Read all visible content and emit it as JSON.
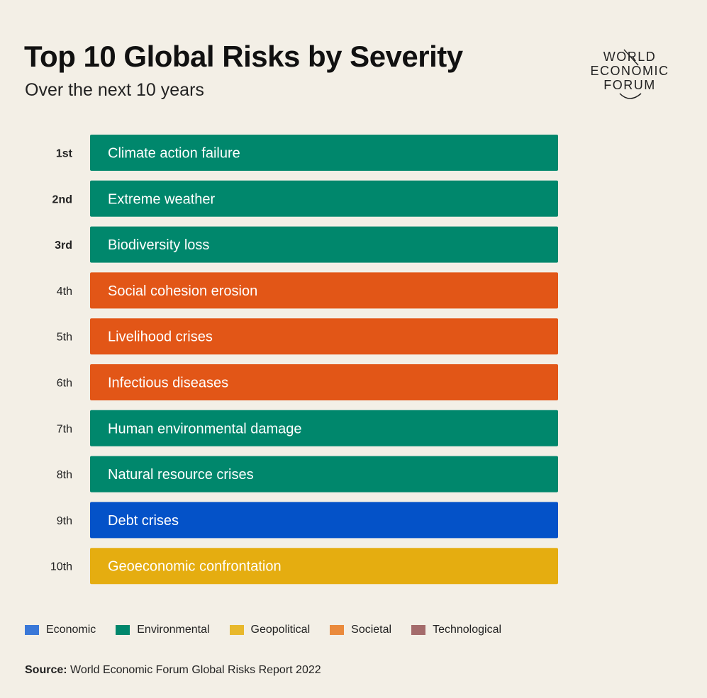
{
  "header": {
    "title": "Top 10 Global Risks by Severity",
    "subtitle": "Over the next 10 years"
  },
  "logo": {
    "line1": "WORLD",
    "line2": "ECONOMIC",
    "line3": "FORUM"
  },
  "colors": {
    "Economic": "#0452c8",
    "Environmental": "#00876c",
    "Geopolitical": "#e5ad10",
    "Societal": "#e25617",
    "Technological": "#a46b6b"
  },
  "legend": [
    {
      "label": "Economic",
      "color": "#3a78d8"
    },
    {
      "label": "Environmental",
      "color": "#00876c"
    },
    {
      "label": "Geopolitical",
      "color": "#e8b82c"
    },
    {
      "label": "Societal",
      "color": "#ea8a3c"
    },
    {
      "label": "Technological",
      "color": "#a46b6b"
    }
  ],
  "chart_data": {
    "type": "table",
    "title": "Top 10 Global Risks by Severity",
    "subtitle": "Over the next 10 years",
    "rows": [
      {
        "rank": "1st",
        "label": "Climate action failure",
        "category": "Environmental"
      },
      {
        "rank": "2nd",
        "label": "Extreme weather",
        "category": "Environmental"
      },
      {
        "rank": "3rd",
        "label": "Biodiversity loss",
        "category": "Environmental"
      },
      {
        "rank": "4th",
        "label": "Social cohesion erosion",
        "category": "Societal"
      },
      {
        "rank": "5th",
        "label": "Livelihood crises",
        "category": "Societal"
      },
      {
        "rank": "6th",
        "label": "Infectious diseases",
        "category": "Societal"
      },
      {
        "rank": "7th",
        "label": "Human environmental damage",
        "category": "Environmental"
      },
      {
        "rank": "8th",
        "label": "Natural resource crises",
        "category": "Environmental"
      },
      {
        "rank": "9th",
        "label": "Debt crises",
        "category": "Economic"
      },
      {
        "rank": "10th",
        "label": "Geoeconomic confrontation",
        "category": "Geopolitical"
      }
    ],
    "bold_ranks": [
      "1st",
      "2nd",
      "3rd"
    ]
  },
  "footer": {
    "source_label": "Source:",
    "source_text": " World Economic Forum Global Risks Report 2022"
  }
}
